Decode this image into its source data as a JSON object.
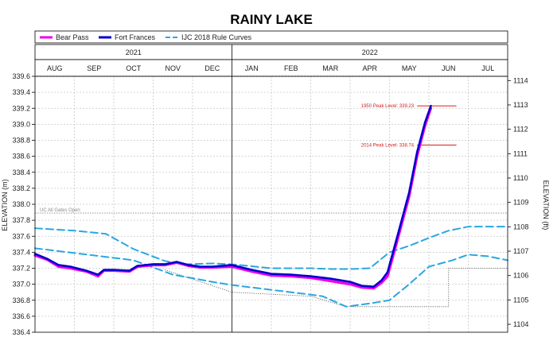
{
  "chart_data": {
    "type": "line",
    "title": "RAINY LAKE",
    "ylabel_left": "ELEVATION (m)",
    "ylabel_right": "ELEVATION (ft)",
    "ylim": [
      336.4,
      339.6
    ],
    "yticks_left": [
      "339.6",
      "339.4",
      "339.2",
      "339.0",
      "338.8",
      "338.6",
      "338.4",
      "338.2",
      "338.0",
      "337.8",
      "337.6",
      "337.4",
      "337.2",
      "337.0",
      "336.8",
      "336.6",
      "336.4"
    ],
    "yticks_right": [
      "1114",
      "1113",
      "1112",
      "1111",
      "1110",
      "1109",
      "1108",
      "1107",
      "1106",
      "1105",
      "1104"
    ],
    "years": [
      {
        "label": "2021",
        "start": 0,
        "end": 5
      },
      {
        "label": "2022",
        "start": 5,
        "end": 12
      }
    ],
    "months": [
      "AUG",
      "SEP",
      "OCT",
      "NOV",
      "DEC",
      "JAN",
      "FEB",
      "MAR",
      "APR",
      "MAY",
      "JUN",
      "JUL"
    ],
    "xlim": [
      0,
      12
    ],
    "legend": {
      "placement": "top",
      "items": [
        {
          "name": "Bear Pass",
          "color": "#ee00ee"
        },
        {
          "name": "Fort Frances",
          "color": "#0000cc"
        },
        {
          "name": "IJC 2018 Rule Curves",
          "color": "#2aa7e0"
        }
      ]
    },
    "series": [
      {
        "name": "Bear Pass",
        "color": "#ee00ee",
        "x": [
          0,
          0.3,
          0.6,
          0.9,
          1.3,
          1.6,
          1.75,
          2.0,
          2.4,
          2.6,
          3.0,
          3.3,
          3.6,
          3.9,
          4.2,
          4.5,
          5.0,
          5.5,
          6.0,
          6.5,
          7.0,
          7.5,
          8.0,
          8.3,
          8.6,
          8.8,
          8.95,
          9.2,
          9.5,
          9.7,
          9.9,
          10.05
        ],
        "y": [
          337.36,
          337.31,
          337.22,
          337.2,
          337.16,
          337.1,
          337.17,
          337.17,
          337.16,
          337.22,
          337.24,
          337.24,
          337.27,
          337.23,
          337.21,
          337.21,
          337.22,
          337.16,
          337.11,
          337.1,
          337.08,
          337.04,
          337.0,
          336.96,
          336.95,
          337.02,
          337.1,
          337.55,
          338.1,
          338.6,
          338.98,
          339.2
        ]
      },
      {
        "name": "Fort Frances",
        "color": "#0000cc",
        "x": [
          0,
          0.3,
          0.6,
          0.9,
          1.3,
          1.6,
          1.75,
          2.0,
          2.4,
          2.6,
          3.0,
          3.3,
          3.6,
          3.9,
          4.2,
          4.5,
          5.0,
          5.5,
          6.0,
          6.5,
          7.0,
          7.5,
          8.0,
          8.3,
          8.6,
          8.8,
          8.95,
          9.2,
          9.5,
          9.7,
          9.9,
          10.05
        ],
        "y": [
          337.38,
          337.32,
          337.24,
          337.22,
          337.17,
          337.12,
          337.18,
          337.18,
          337.17,
          337.23,
          337.25,
          337.25,
          337.28,
          337.24,
          337.22,
          337.22,
          337.24,
          337.18,
          337.13,
          337.12,
          337.1,
          337.07,
          337.03,
          336.98,
          336.97,
          337.05,
          337.15,
          337.6,
          338.15,
          338.65,
          339.02,
          339.23
        ]
      },
      {
        "name": "IJC 2018 Rule Curves (upper)",
        "color": "#2aa7e0",
        "x": [
          0,
          1.0,
          1.8,
          2.5,
          3.3,
          3.8,
          4.5,
          5.0,
          6.0,
          7.0,
          7.5,
          8.0,
          8.5,
          9.0,
          9.5,
          10.0,
          10.5,
          11.0,
          11.5,
          12.0
        ],
        "y": [
          337.7,
          337.67,
          337.63,
          337.44,
          337.29,
          337.25,
          337.26,
          337.25,
          337.2,
          337.2,
          337.19,
          337.19,
          337.2,
          337.4,
          337.48,
          337.58,
          337.67,
          337.72,
          337.72,
          337.72
        ]
      },
      {
        "name": "IJC 2018 Rule Curves (lower)",
        "color": "#2aa7e0",
        "x": [
          0,
          1.5,
          2.5,
          3.5,
          4.5,
          5.0,
          6.0,
          7.0,
          7.3,
          7.9,
          8.5,
          9.0,
          9.5,
          10.0,
          10.6,
          11.0,
          11.5,
          12.0
        ],
        "y": [
          337.45,
          337.36,
          337.3,
          337.12,
          337.03,
          336.99,
          336.93,
          336.87,
          336.85,
          336.72,
          336.76,
          336.8,
          337.0,
          337.22,
          337.3,
          337.37,
          337.35,
          337.3
        ]
      }
    ],
    "reference_lines": [
      {
        "label": "1950 Peak Level: 339.23",
        "y": 339.23,
        "x0": 9.7,
        "x1": 10.7,
        "color": "#d42020"
      },
      {
        "label": "2014 Peak Level: 338.74",
        "y": 338.74,
        "x0": 9.7,
        "x1": 10.7,
        "color": "#d42020"
      },
      {
        "label": "UC All Gates Open",
        "y": 337.89,
        "color": "#888888"
      }
    ],
    "dotted_envelope": {
      "color": "#555555",
      "x": [
        3.3,
        5.0,
        7.0,
        7.9,
        10.5,
        10.5,
        12.0
      ],
      "y": [
        337.18,
        336.9,
        336.85,
        336.72,
        336.72,
        337.2,
        337.2
      ]
    }
  }
}
